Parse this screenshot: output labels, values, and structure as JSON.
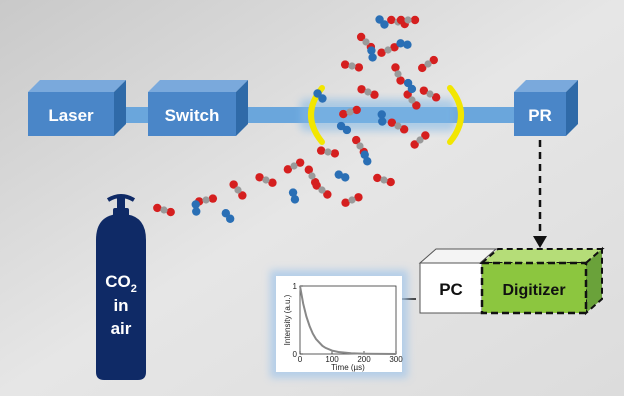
{
  "components": {
    "laser": "Laser",
    "switch": "Switch",
    "detector": "PR",
    "pc": "PC",
    "digitizer": "Digitizer",
    "cylinder_line1": "CO",
    "cylinder_subscript": "2",
    "cylinder_line2": "in",
    "cylinder_line3": "air"
  },
  "colors": {
    "box_blue": "#4a86c8",
    "beam": "#6aa6dc",
    "mirror": "#f2e600",
    "cylinder": "#0f2a66",
    "digitizer": "#8cc63f",
    "oxygen": "#d51f1f",
    "carbon": "#9a9a9a",
    "nitrogen": "#2a6fb5",
    "curve": "#888888"
  },
  "chart_data": {
    "type": "line",
    "xlabel": "Time (µs)",
    "ylabel": "Intensity (a.u.)",
    "xlim": [
      0,
      300
    ],
    "ylim": [
      0,
      1
    ],
    "xticks": [
      "0",
      "100",
      "200",
      "300"
    ],
    "yticks": [
      "0",
      "1"
    ],
    "series": [
      {
        "values": [
          [
            0,
            1.0
          ],
          [
            10,
            0.74
          ],
          [
            20,
            0.55
          ],
          [
            30,
            0.41
          ],
          [
            40,
            0.3
          ],
          [
            50,
            0.22
          ],
          [
            60,
            0.17
          ],
          [
            70,
            0.12
          ],
          [
            80,
            0.09
          ],
          [
            100,
            0.05
          ],
          [
            120,
            0.03
          ],
          [
            140,
            0.02
          ],
          [
            160,
            0.01
          ],
          [
            200,
            0.005
          ],
          [
            250,
            0.002
          ],
          [
            300,
            0.0
          ]
        ]
      }
    ]
  }
}
